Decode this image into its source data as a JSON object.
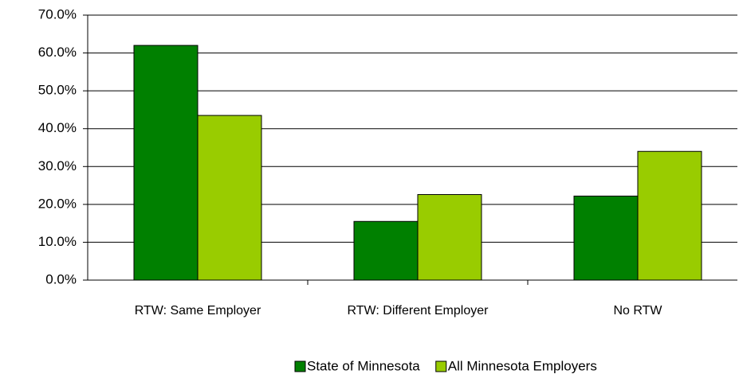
{
  "chart_data": {
    "type": "bar",
    "categories": [
      "RTW: Same Employer",
      "RTW: Different Employer",
      "No RTW"
    ],
    "series": [
      {
        "name": "State of Minnesota",
        "color": "#008000",
        "values": [
          62.0,
          15.5,
          22.2
        ]
      },
      {
        "name": "All Minnesota Employers",
        "color": "#99cc00",
        "values": [
          43.5,
          22.6,
          34.0
        ]
      }
    ],
    "ylim": [
      0,
      70
    ],
    "yticks": [
      {
        "value": 0,
        "label": "0.0%"
      },
      {
        "value": 10,
        "label": "10.0%"
      },
      {
        "value": 20,
        "label": "20.0%"
      },
      {
        "value": 30,
        "label": "30.0%"
      },
      {
        "value": 40,
        "label": "40.0%"
      },
      {
        "value": 50,
        "label": "50.0%"
      },
      {
        "value": 60,
        "label": "60.0%"
      },
      {
        "value": 70,
        "label": "70.0%"
      }
    ],
    "grid": true,
    "legend": "bottom"
  }
}
